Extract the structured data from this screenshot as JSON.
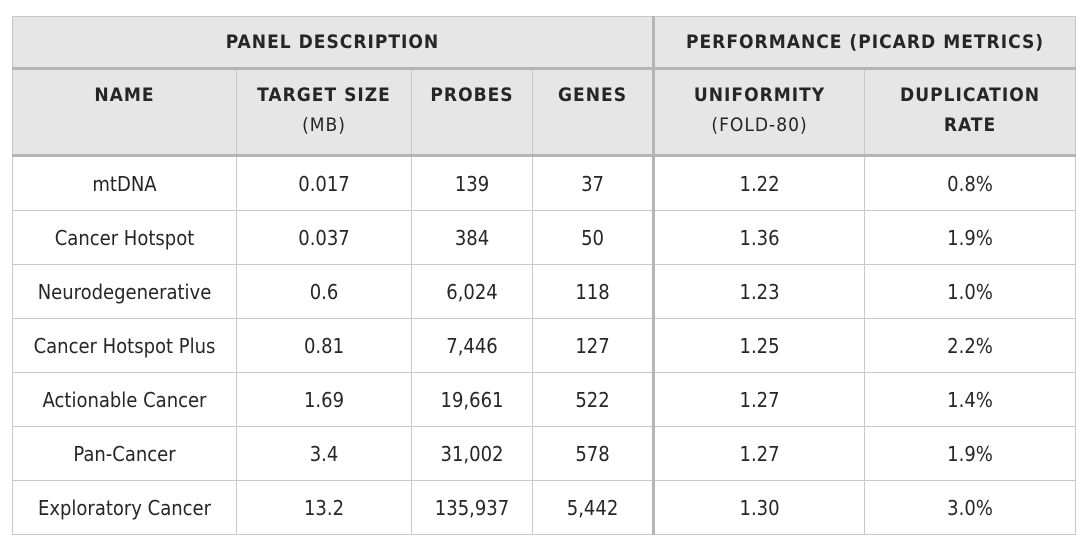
{
  "table": {
    "group_headers": [
      "PANEL DESCRIPTION",
      "PERFORMANCE (PICARD METRICS)"
    ],
    "columns": [
      {
        "title": "NAME",
        "sub": ""
      },
      {
        "title": "TARGET SIZE",
        "sub": "(MB)"
      },
      {
        "title": "PROBES",
        "sub": ""
      },
      {
        "title": "GENES",
        "sub": ""
      },
      {
        "title": "UNIFORMITY",
        "sub": "(FOLD-80)"
      },
      {
        "title": "DUPLICATION",
        "sub": "RATE"
      }
    ],
    "rows": [
      [
        "mtDNA",
        "0.017",
        "139",
        "37",
        "1.22",
        "0.8%"
      ],
      [
        "Cancer Hotspot",
        "0.037",
        "384",
        "50",
        "1.36",
        "1.9%"
      ],
      [
        "Neurodegenerative",
        "0.6",
        "6,024",
        "118",
        "1.23",
        "1.0%"
      ],
      [
        "Cancer Hotspot Plus",
        "0.81",
        "7,446",
        "127",
        "1.25",
        "2.2%"
      ],
      [
        "Actionable Cancer",
        "1.69",
        "19,661",
        "522",
        "1.27",
        "1.4%"
      ],
      [
        "Pan-Cancer",
        "3.4",
        "31,002",
        "578",
        "1.27",
        "1.9%"
      ],
      [
        "Exploratory Cancer",
        "13.2",
        "135,937",
        "5,442",
        "1.30",
        "3.0%"
      ]
    ]
  }
}
